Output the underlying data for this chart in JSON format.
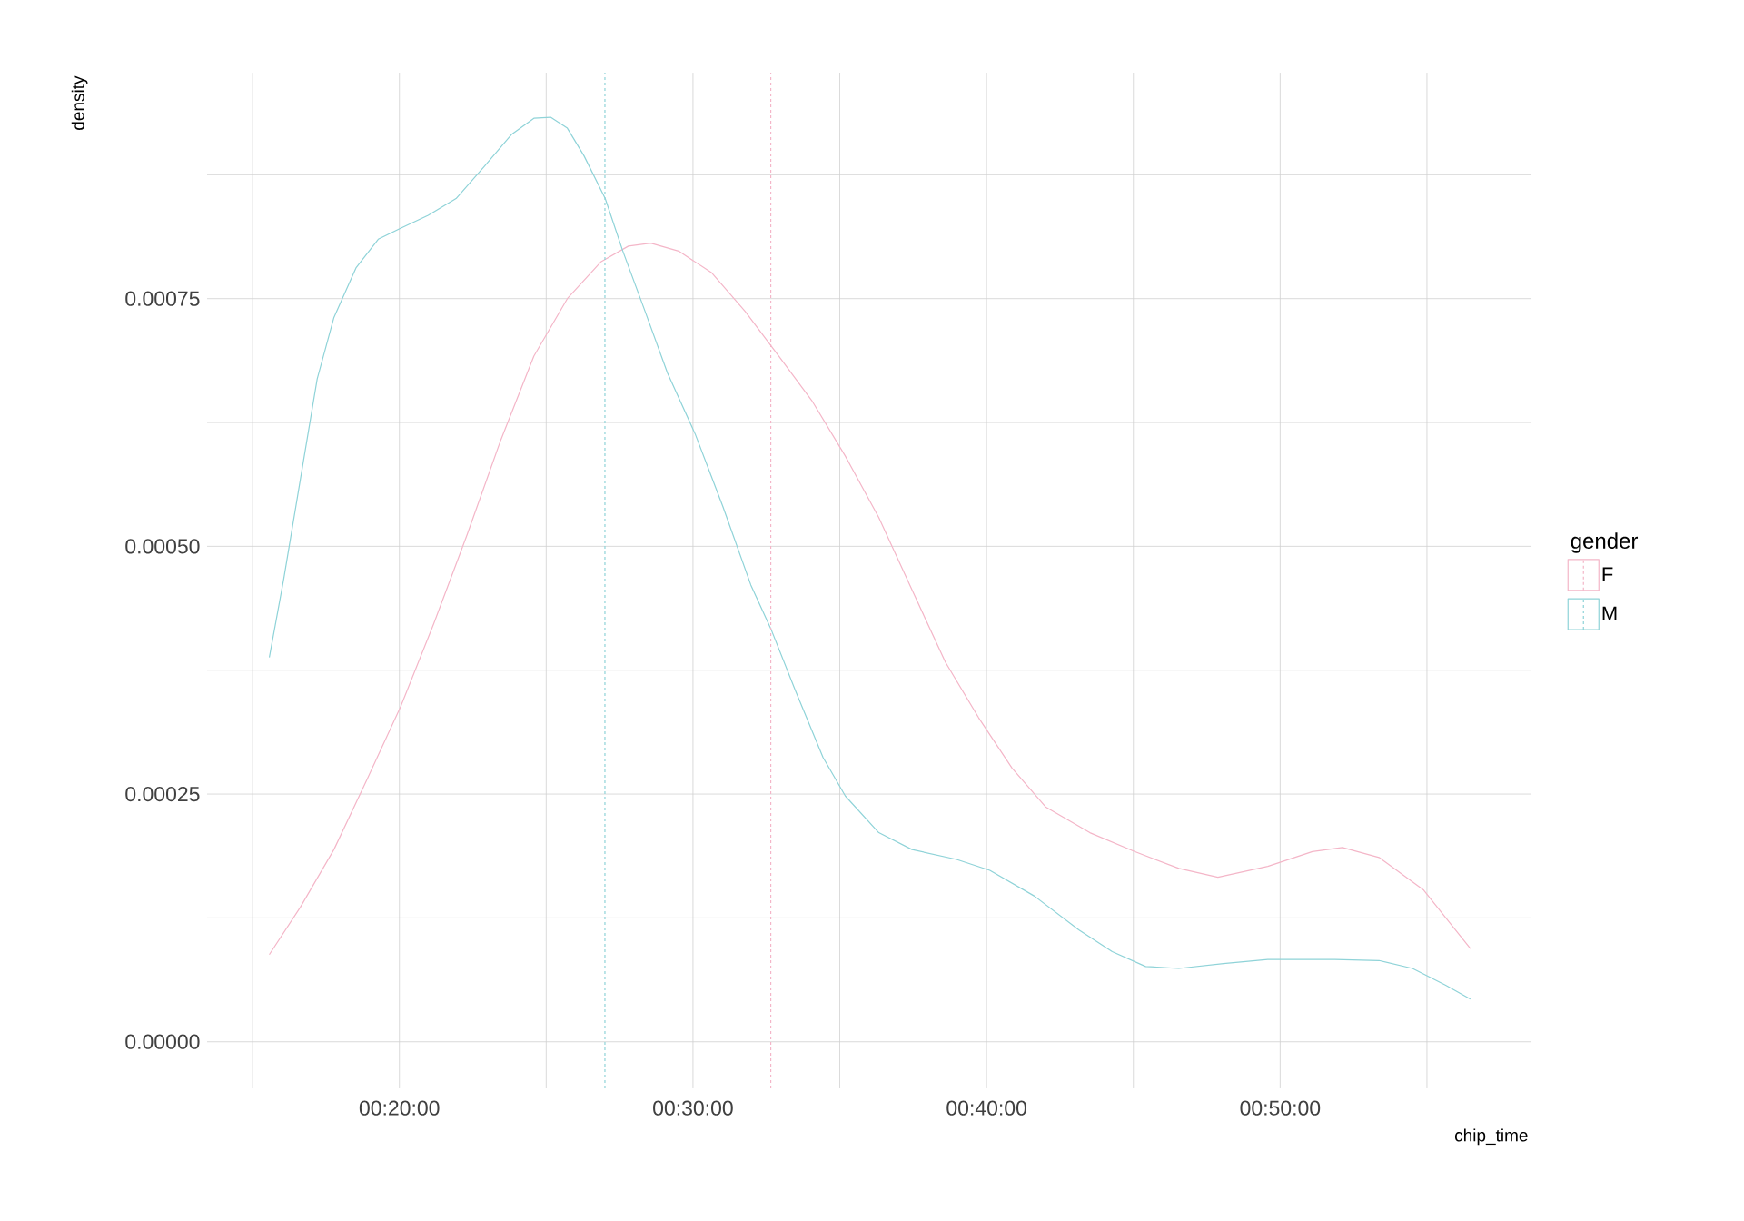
{
  "chart_data": {
    "type": "line",
    "xlabel": "chip_time",
    "ylabel": "density",
    "legend_title": "gender",
    "xlim": [
      13.45,
      58.56
    ],
    "ylim": [
      -4.7e-05,
      0.000978
    ],
    "xticks": [
      {
        "value": 15,
        "label": null
      },
      {
        "value": 20,
        "label": "00:20:00"
      },
      {
        "value": 25,
        "label": null
      },
      {
        "value": 30,
        "label": "00:30:00"
      },
      {
        "value": 35,
        "label": null
      },
      {
        "value": 40,
        "label": "00:40:00"
      },
      {
        "value": 45,
        "label": null
      },
      {
        "value": 50,
        "label": "00:50:00"
      },
      {
        "value": 55,
        "label": null
      }
    ],
    "yticks": [
      {
        "value": 0,
        "label": "0.00000"
      },
      {
        "value": 0.000125,
        "label": null
      },
      {
        "value": 0.00025,
        "label": "0.00025"
      },
      {
        "value": 0.000375,
        "label": null
      },
      {
        "value": 0.0005,
        "label": "0.00050"
      },
      {
        "value": 0.000625,
        "label": null
      },
      {
        "value": 0.00075,
        "label": "0.00075"
      },
      {
        "value": 0.000875,
        "label": null
      }
    ],
    "grid": true,
    "legend": "right",
    "marker": "none",
    "line_style": "solid",
    "series": [
      {
        "name": "F",
        "color": "#f4b6c8",
        "x": [
          15.57,
          16.63,
          17.77,
          18.9,
          20.04,
          21.17,
          22.31,
          23.45,
          24.58,
          25.72,
          26.86,
          27.8,
          28.56,
          29.51,
          30.64,
          31.78,
          32.92,
          34.05,
          35.19,
          36.33,
          37.46,
          38.6,
          39.73,
          40.87,
          42.01,
          43.52,
          45.04,
          46.55,
          47.88,
          49.58,
          51.1,
          52.12,
          53.37,
          54.89,
          56.48
        ],
        "values": [
          8.8e-05,
          0.000136,
          0.000194,
          0.000265,
          0.000338,
          0.000422,
          0.000512,
          0.000607,
          0.000692,
          0.00075,
          0.000787,
          0.000803,
          0.000806,
          0.000798,
          0.000776,
          0.000737,
          0.000692,
          0.000647,
          0.000591,
          0.000529,
          0.000456,
          0.000383,
          0.000327,
          0.000276,
          0.000237,
          0.000211,
          0.000192,
          0.000175,
          0.000166,
          0.000177,
          0.000192,
          0.000196,
          0.000186,
          0.000153,
          9.4e-05
        ]
      },
      {
        "name": "M",
        "color": "#8fd3d8",
        "x": [
          15.57,
          16.06,
          16.63,
          17.2,
          17.77,
          18.52,
          19.28,
          20.04,
          20.98,
          21.93,
          22.88,
          23.83,
          24.58,
          25.15,
          25.72,
          26.29,
          27.01,
          27.61,
          28.37,
          29.13,
          30.08,
          31.02,
          31.97,
          32.65,
          33.48,
          34.43,
          35.19,
          36.33,
          37.46,
          38.98,
          40.11,
          41.63,
          43.14,
          44.28,
          45.42,
          46.55,
          48.07,
          49.58,
          51.86,
          53.37,
          54.51,
          55.64,
          56.48
        ],
        "values": [
          0.000388,
          0.000467,
          0.000568,
          0.000669,
          0.000731,
          0.000781,
          0.00081,
          0.000821,
          0.000834,
          0.000851,
          0.000883,
          0.000916,
          0.000932,
          0.000933,
          0.000922,
          0.000894,
          0.000851,
          0.000798,
          0.000737,
          0.000675,
          0.000613,
          0.00054,
          0.000461,
          0.000417,
          0.000355,
          0.000287,
          0.000248,
          0.000211,
          0.000194,
          0.000184,
          0.000173,
          0.000147,
          0.000113,
          9.1e-05,
          7.6e-05,
          7.4e-05,
          7.9e-05,
          8.3e-05,
          8.3e-05,
          8.2e-05,
          7.4e-05,
          5.7e-05,
          4.3e-05
        ]
      }
    ],
    "ref_lines": [
      {
        "axis": "x",
        "value": 27.0,
        "color": "#8fd3d8",
        "line_style": "dashed"
      },
      {
        "axis": "x",
        "value": 32.65,
        "color": "#f4b6c8",
        "line_style": "dashed"
      }
    ]
  }
}
